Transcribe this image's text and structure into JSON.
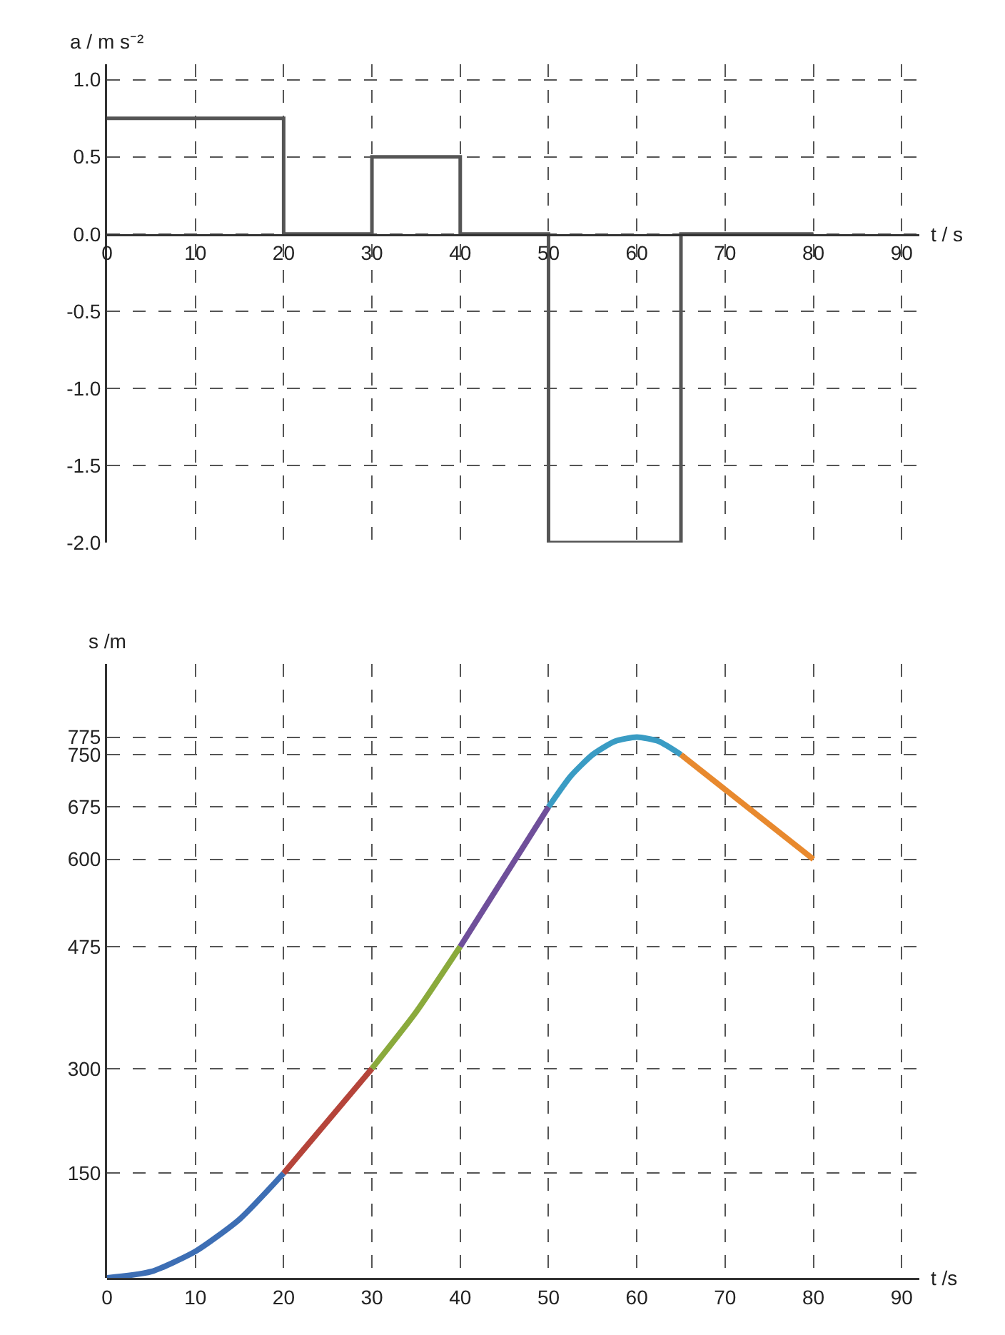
{
  "chart_data": [
    {
      "type": "step",
      "xlabel": "t / s",
      "ylabel": "a / m s⁻²",
      "x": [
        0,
        20,
        30,
        40,
        50,
        65,
        80
      ],
      "values": [
        0.75,
        0,
        0.5,
        0,
        -2.0,
        0,
        0
      ],
      "color": "#555555",
      "xlim": [
        0,
        92
      ],
      "ylim": [
        -2.0,
        1.1
      ],
      "xticks": [
        0,
        10,
        20,
        30,
        40,
        50,
        60,
        70,
        80,
        90
      ],
      "yticks": [
        {
          "value": 1.0,
          "label": "1.0"
        },
        {
          "value": 0.5,
          "label": "0.5"
        },
        {
          "value": 0,
          "label": "0.0"
        },
        {
          "value": -0.5,
          "label": "-0.5"
        },
        {
          "value": -1.0,
          "label": "-1.0"
        },
        {
          "value": -1.5,
          "label": "-1.5"
        },
        {
          "value": -2.0,
          "label": "-2.0"
        }
      ],
      "grid": true
    },
    {
      "type": "line",
      "xlabel": "t /s",
      "ylabel": "s /m",
      "series": [
        {
          "color": "#3d6eb4",
          "x": [
            0,
            5,
            10,
            15,
            20
          ],
          "values": [
            0,
            9,
            38,
            84,
            150
          ]
        },
        {
          "color": "#b5443a",
          "x": [
            20,
            25,
            30
          ],
          "values": [
            150,
            225,
            300
          ]
        },
        {
          "color": "#8aaa3c",
          "x": [
            30,
            35,
            40
          ],
          "values": [
            300,
            381,
            475
          ]
        },
        {
          "color": "#6f4f9a",
          "x": [
            40,
            45,
            50
          ],
          "values": [
            475,
            575,
            675
          ]
        },
        {
          "color": "#3a9cc4",
          "x": [
            50,
            52.5,
            55,
            57.5,
            60,
            62.5,
            65
          ],
          "values": [
            675,
            719,
            750,
            769,
            775,
            769,
            750
          ]
        },
        {
          "color": "#e8892e",
          "x": [
            65,
            80
          ],
          "values": [
            750,
            600
          ]
        }
      ],
      "xlim": [
        0,
        92
      ],
      "ylim": [
        0,
        880
      ],
      "xticks": [
        0,
        10,
        20,
        30,
        40,
        50,
        60,
        70,
        80,
        90
      ],
      "yticks": [
        150,
        300,
        475,
        600,
        675,
        750,
        775
      ],
      "grid": true
    }
  ]
}
